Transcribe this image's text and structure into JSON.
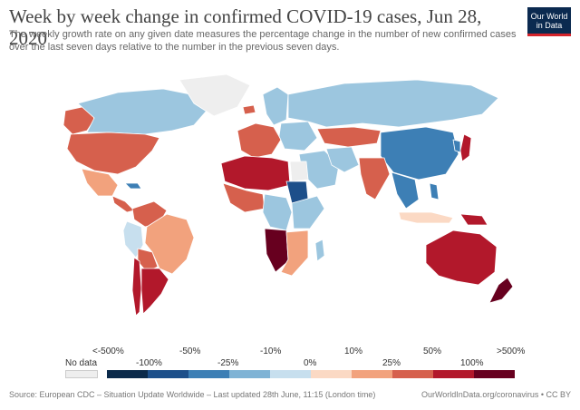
{
  "header": {
    "title": "Week by week change in confirmed COVID-19 cases, Jun 28, 2020",
    "subtitle": "The weekly growth rate on any given date measures the percentage change in the number of new confirmed cases over the last seven days relative to the number in the previous seven days.",
    "logo_line1": "Our World",
    "logo_line2": "in Data"
  },
  "legend": {
    "no_data_label": "No data",
    "no_data_color": "#eeeeee",
    "top_labels": [
      "<-500%",
      "-50%",
      "-10%",
      "10%",
      "50%",
      ">500%"
    ],
    "bottom_labels": [
      "-100%",
      "-25%",
      "0%",
      "25%",
      "100%"
    ],
    "colors": [
      "#0b2a4a",
      "#1d4f8a",
      "#3d7fb5",
      "#7fb3d5",
      "#c7dfee",
      "#fbd9c4",
      "#f2a27d",
      "#d6604d",
      "#b2182b",
      "#67001f"
    ]
  },
  "footer": {
    "source": "Source: European CDC – Situation Update Worldwide – Last updated 28th June, 11:15 (London time)",
    "credit": "OurWorldInData.org/coronavirus • CC BY"
  },
  "regions": [
    {
      "name": "greenland",
      "color": "#eeeeee"
    },
    {
      "name": "canada",
      "color": "#9cc6df"
    },
    {
      "name": "alaska",
      "color": "#d6604d"
    },
    {
      "name": "usa",
      "color": "#d6604d"
    },
    {
      "name": "mexico",
      "color": "#f2a27d"
    },
    {
      "name": "central-america",
      "color": "#d6604d"
    },
    {
      "name": "cuba",
      "color": "#3d7fb5"
    },
    {
      "name": "colombia-venezuela",
      "color": "#d6604d"
    },
    {
      "name": "peru",
      "color": "#c7dfee"
    },
    {
      "name": "brazil",
      "color": "#f2a27d"
    },
    {
      "name": "bolivia",
      "color": "#d6604d"
    },
    {
      "name": "chile",
      "color": "#b2182b"
    },
    {
      "name": "argentina",
      "color": "#b2182b"
    },
    {
      "name": "iceland",
      "color": "#d6604d"
    },
    {
      "name": "scandinavia",
      "color": "#9cc6df"
    },
    {
      "name": "western-europe",
      "color": "#d6604d"
    },
    {
      "name": "eastern-europe",
      "color": "#9cc6df"
    },
    {
      "name": "russia",
      "color": "#9cc6df"
    },
    {
      "name": "kazakhstan",
      "color": "#d6604d"
    },
    {
      "name": "mongolia-china",
      "color": "#3d7fb5"
    },
    {
      "name": "middle-east",
      "color": "#9cc6df"
    },
    {
      "name": "iran",
      "color": "#9cc6df"
    },
    {
      "name": "india",
      "color": "#d6604d"
    },
    {
      "name": "southeast-asia",
      "color": "#3d7fb5"
    },
    {
      "name": "indonesia",
      "color": "#fbd9c4"
    },
    {
      "name": "papua-new-guinea",
      "color": "#b2182b"
    },
    {
      "name": "japan",
      "color": "#b2182b"
    },
    {
      "name": "korea",
      "color": "#3d7fb5"
    },
    {
      "name": "philippines",
      "color": "#3d7fb5"
    },
    {
      "name": "north-africa",
      "color": "#b2182b"
    },
    {
      "name": "egypt",
      "color": "#eeeeee"
    },
    {
      "name": "west-africa",
      "color": "#d6604d"
    },
    {
      "name": "sudan",
      "color": "#1d4f8a"
    },
    {
      "name": "east-africa",
      "color": "#9cc6df"
    },
    {
      "name": "central-africa",
      "color": "#9cc6df"
    },
    {
      "name": "angola-namibia",
      "color": "#67001f"
    },
    {
      "name": "southern-africa",
      "color": "#f2a27d"
    },
    {
      "name": "madagascar",
      "color": "#9cc6df"
    },
    {
      "name": "australia",
      "color": "#b2182b"
    },
    {
      "name": "new-zealand",
      "color": "#67001f"
    }
  ]
}
